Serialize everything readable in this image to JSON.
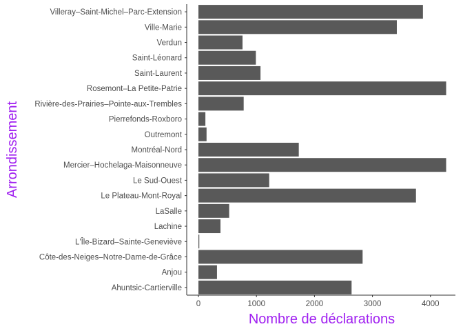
{
  "chart_data": {
    "type": "bar",
    "orientation": "horizontal",
    "xlabel": "Nombre de déclarations",
    "ylabel": "Arrondissement",
    "title_color": "#a020f0",
    "bar_color": "#595959",
    "xlim": [
      0,
      4400
    ],
    "xticks": [
      0,
      1000,
      2000,
      3000,
      4000
    ],
    "grid": false,
    "categories": [
      "Villeray–Saint-Michel–Parc-Extension",
      "Ville-Marie",
      "Verdun",
      "Saint-Léonard",
      "Saint-Laurent",
      "Rosemont–La Petite-Patrie",
      "Rivière-des-Prairies–Pointe-aux-Trembles",
      "Pierrefonds-Roxboro",
      "Outremont",
      "Montréal-Nord",
      "Mercier–Hochelaga-Maisonneuve",
      "Le Sud-Ouest",
      "Le Plateau-Mont-Royal",
      "LaSalle",
      "Lachine",
      "L'Île-Bizard–Sainte-Geneviève",
      "Côte-des-Neiges–Notre-Dame-de-Grâce",
      "Anjou",
      "Ahuntsic-Cartierville"
    ],
    "values": [
      3870,
      3420,
      760,
      990,
      1070,
      4270,
      780,
      120,
      140,
      1730,
      4270,
      1220,
      3750,
      530,
      380,
      15,
      2830,
      320,
      2640
    ]
  }
}
